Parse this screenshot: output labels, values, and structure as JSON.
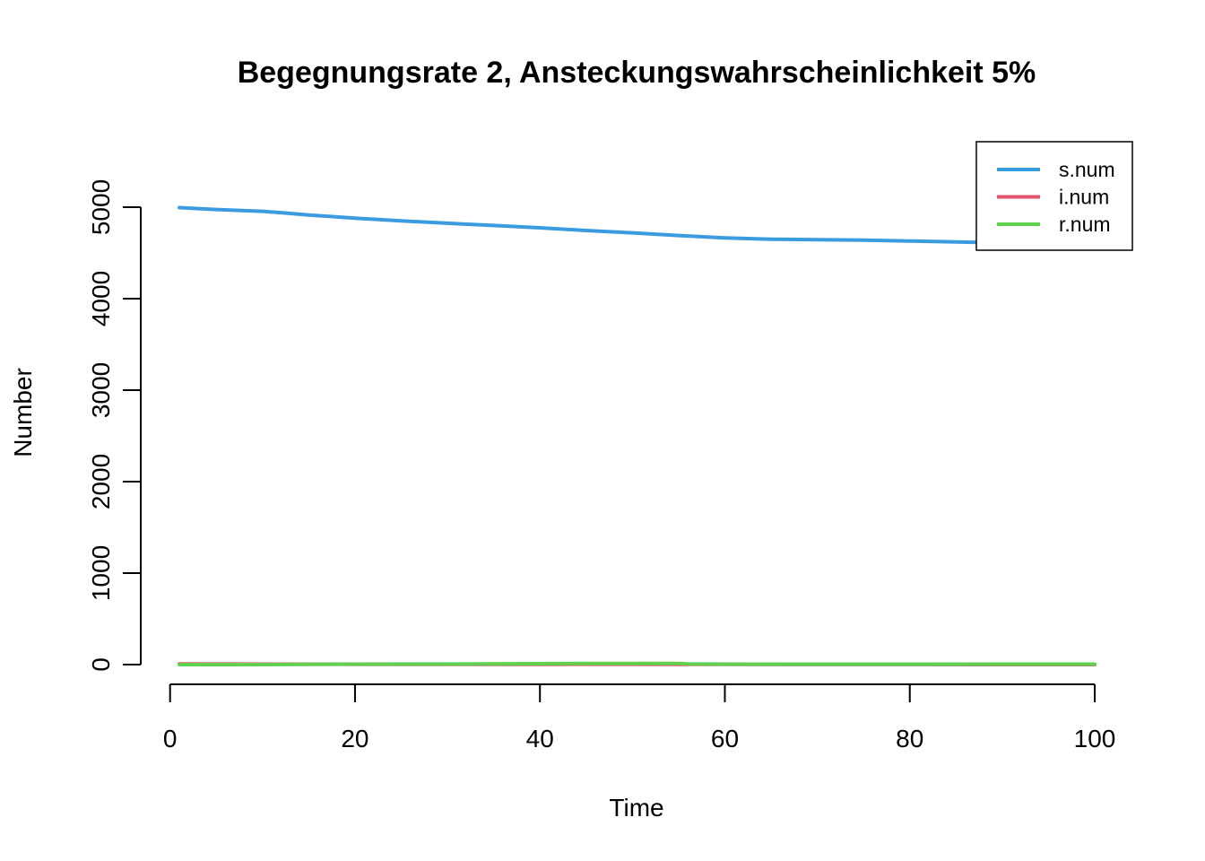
{
  "chart_data": {
    "type": "line",
    "title": "Begegnungsrate 2, Ansteckungswahrscheinlichkeit 5%",
    "xlabel": "Time",
    "ylabel": "Number",
    "xlim": [
      1,
      100
    ],
    "ylim": [
      0,
      5000
    ],
    "xticks": [
      0,
      20,
      40,
      60,
      80,
      100
    ],
    "yticks": [
      0,
      1000,
      2000,
      3000,
      4000,
      5000
    ],
    "grid": false,
    "legend_position": "top-right",
    "series": [
      {
        "name": "s.num",
        "color": "#3a9be0",
        "x": [
          1,
          5,
          10,
          12,
          15,
          20,
          25,
          30,
          35,
          40,
          45,
          50,
          55,
          60,
          65,
          70,
          75,
          80,
          85,
          90,
          95,
          100
        ],
        "y": [
          4995,
          4975,
          4955,
          4940,
          4915,
          4880,
          4850,
          4825,
          4800,
          4775,
          4745,
          4720,
          4690,
          4665,
          4650,
          4645,
          4640,
          4630,
          4620,
          4610,
          4605,
          4600
        ]
      },
      {
        "name": "i.num",
        "color": "#df536b",
        "x": [
          1,
          5,
          10,
          15,
          20,
          30,
          40,
          45,
          50,
          55,
          60,
          70,
          80,
          90,
          100
        ],
        "y": [
          8,
          6,
          5,
          4,
          3,
          2,
          3,
          4,
          4,
          3,
          2,
          1,
          1,
          0,
          0
        ]
      },
      {
        "name": "r.num",
        "color": "#61d04f",
        "x": [
          1,
          5,
          10,
          15,
          20,
          30,
          40,
          45,
          50,
          55,
          56,
          60,
          70,
          80,
          90,
          100
        ],
        "y": [
          0,
          0,
          0,
          3,
          5,
          6,
          10,
          12,
          12,
          12,
          8,
          5,
          5,
          5,
          5,
          5
        ]
      }
    ]
  }
}
